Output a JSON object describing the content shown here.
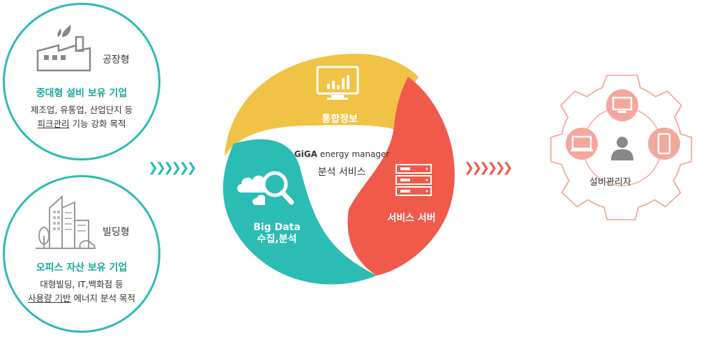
{
  "factory": {
    "type_label": "공장형",
    "heading": "중대형 설비 보유 기업",
    "line1": "제조업, 유통업, 산업단지 등",
    "line2_underlined": "피크관리",
    "line2_rest": " 기능 강화 목적"
  },
  "building": {
    "type_label": "빌딩형",
    "heading": "오피스 자산 보유 기업",
    "line1": "대형빌딩, IT,백화점 등",
    "line2_underlined": "사용량 기반",
    "line2_rest": " 에너지 분석 목적"
  },
  "wheel": {
    "top_label": "통합정보",
    "left_label_1": "Big Data",
    "left_label_2": "수집,분석",
    "right_label": "서비스 서버",
    "brand": "GiGA",
    "brand_suffix": "energy manager",
    "service": "분석 서비스"
  },
  "admin": {
    "label": "설비관리자"
  },
  "colors": {
    "teal": "#2bbcb4",
    "yellow": "#f0c245",
    "red": "#f05a4a",
    "pink": "#f4a79c"
  }
}
